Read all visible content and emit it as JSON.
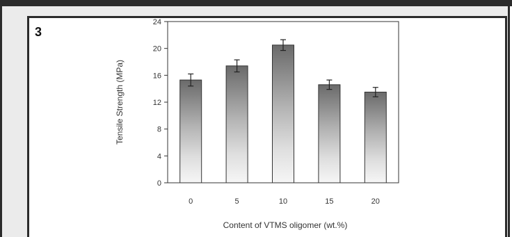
{
  "figure": {
    "number": "3"
  },
  "chart_data": {
    "type": "bar",
    "categories": [
      "0",
      "5",
      "10",
      "15",
      "20"
    ],
    "values": [
      15.3,
      17.4,
      20.5,
      14.6,
      13.5
    ],
    "errors": [
      0.9,
      0.9,
      0.8,
      0.7,
      0.7
    ],
    "xlabel": "Content of VTMS oligomer (wt.%)",
    "ylabel": "Tensile Strength (MPa)",
    "ylim": [
      0,
      24
    ],
    "yticks": [
      "0",
      "4",
      "8",
      "12",
      "16",
      "20",
      "24"
    ],
    "grid": false,
    "bar_style": "vertical gradient, light at bottom, dark grey at top"
  }
}
